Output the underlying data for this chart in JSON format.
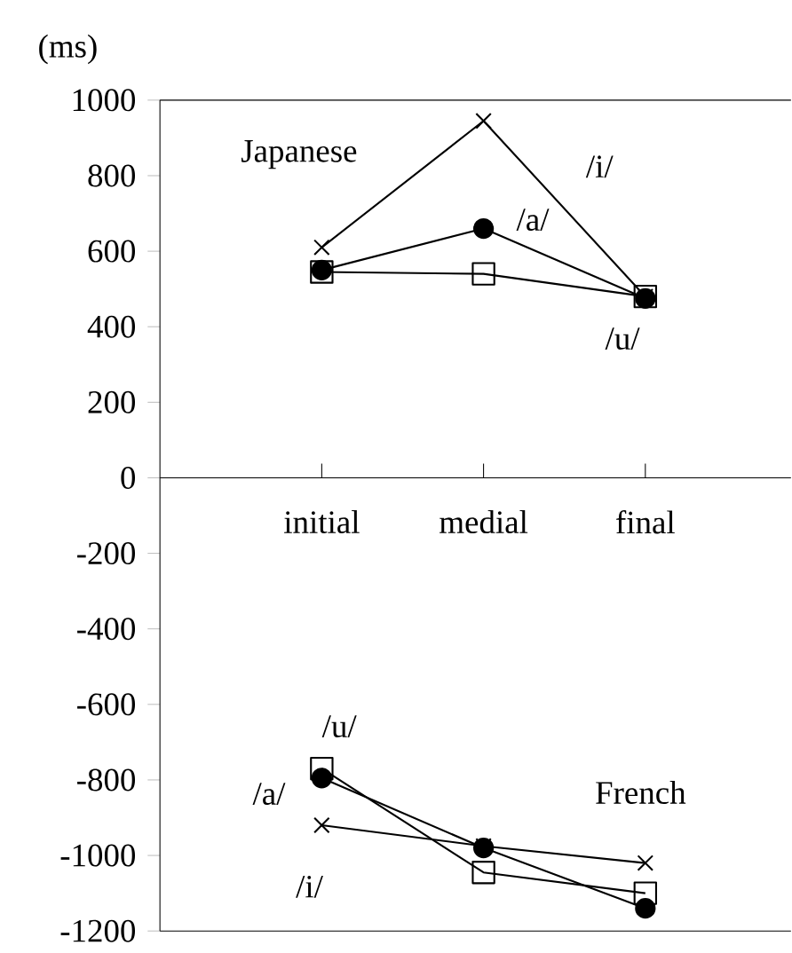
{
  "chart_data": {
    "type": "line",
    "ylabel": "(ms)",
    "categories": [
      "initial",
      "medial",
      "final"
    ],
    "ylim": [
      -1200,
      1000
    ],
    "yticks": [
      -1200,
      -1000,
      -800,
      -600,
      -400,
      -200,
      0,
      200,
      400,
      600,
      800,
      1000
    ],
    "grid": false,
    "legend": false,
    "line_style": "solid",
    "series": [
      {
        "name": "/i/",
        "color": "#000000",
        "marker": "cross",
        "values": [
          610,
          945,
          480
        ]
      },
      {
        "name": "/a/",
        "color": "#000000",
        "marker": "circle",
        "values": [
          550,
          660,
          475
        ]
      },
      {
        "name": "/u/",
        "color": "#000000",
        "marker": "square",
        "values": [
          545,
          540,
          480
        ]
      },
      {
        "name": "/u/",
        "color": "#000000",
        "marker": "square",
        "values": [
          -770,
          -1045,
          -1100
        ]
      },
      {
        "name": "/a/",
        "color": "#000000",
        "marker": "circle",
        "values": [
          -795,
          -980,
          -1140
        ]
      },
      {
        "name": "/i/",
        "color": "#000000",
        "marker": "cross",
        "values": [
          -920,
          -975,
          -1020
        ]
      }
    ],
    "annotations": [
      "Japanese",
      "French"
    ]
  }
}
